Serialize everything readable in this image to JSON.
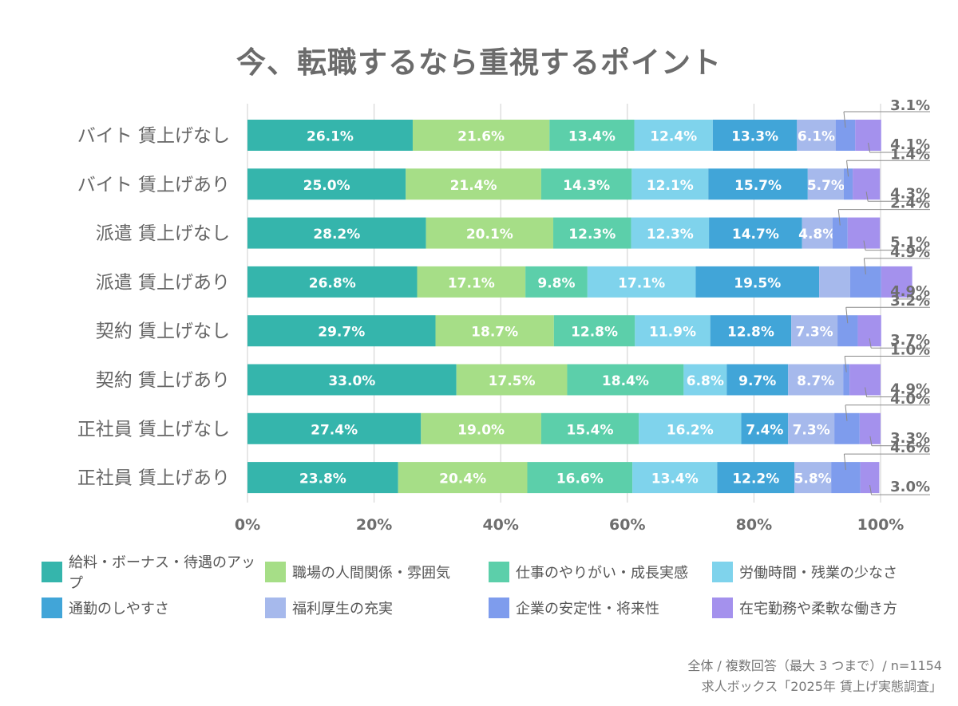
{
  "chart_data": {
    "type": "bar",
    "orientation": "horizontal",
    "stacked": true,
    "title": "今、転職するなら重視するポイント",
    "categories": [
      "バイト 賃上げなし",
      "バイト 賃上げあり",
      "派遣 賃上げなし",
      "派遣 賃上げあり",
      "契約 賃上げなし",
      "契約 賃上げあり",
      "正社員 賃上げなし",
      "正社員 賃上げあり"
    ],
    "series": [
      {
        "name": "給料・ボーナス・待遇のアップ",
        "color": "#35b5ac",
        "values": [
          26.1,
          25.0,
          28.2,
          26.8,
          29.7,
          33.0,
          27.4,
          23.8
        ]
      },
      {
        "name": "職場の人間関係・雰囲気",
        "color": "#a6de87",
        "values": [
          21.6,
          21.4,
          20.1,
          17.1,
          18.7,
          17.5,
          19.0,
          20.4
        ]
      },
      {
        "name": "仕事のやりがい・成長実感",
        "color": "#5ccfaa",
        "values": [
          13.4,
          14.3,
          12.3,
          9.8,
          12.8,
          18.4,
          15.4,
          16.6
        ]
      },
      {
        "name": "労働時間・残業の少なさ",
        "color": "#7fd3ec",
        "values": [
          12.4,
          12.1,
          12.3,
          17.1,
          11.9,
          6.8,
          16.2,
          13.4
        ]
      },
      {
        "name": "通勤のしやすさ",
        "color": "#41a5d8",
        "values": [
          13.3,
          15.7,
          14.7,
          19.5,
          12.8,
          9.7,
          7.4,
          12.2
        ]
      },
      {
        "name": "福利厚生の充実",
        "color": "#a6b9ec",
        "values": [
          6.1,
          5.7,
          4.8,
          4.9,
          7.3,
          8.7,
          7.3,
          5.8
        ]
      },
      {
        "name": "企業の安定性・将来性",
        "color": "#7e9ced",
        "values": [
          3.1,
          1.4,
          2.4,
          4.9,
          3.2,
          1.0,
          4.0,
          4.6
        ]
      },
      {
        "name": "在宅勤務や柔軟な働き方",
        "color": "#a491ed",
        "values": [
          4.1,
          4.3,
          5.1,
          4.9,
          3.7,
          4.9,
          3.3,
          3.0
        ]
      }
    ],
    "labels": [
      [
        "26.1%",
        "21.6%",
        "13.4%",
        "12.4%",
        "13.3%",
        "6.1%",
        "",
        ""
      ],
      [
        "25.0%",
        "21.4%",
        "14.3%",
        "12.1%",
        "15.7%",
        "5.7%",
        "",
        ""
      ],
      [
        "28.2%",
        "20.1%",
        "12.3%",
        "12.3%",
        "14.7%",
        "4.8%",
        "",
        ""
      ],
      [
        "26.8%",
        "17.1%",
        "9.8%",
        "17.1%",
        "19.5%",
        "",
        "",
        ""
      ],
      [
        "29.7%",
        "18.7%",
        "12.8%",
        "11.9%",
        "12.8%",
        "7.3%",
        "",
        ""
      ],
      [
        "33.0%",
        "17.5%",
        "18.4%",
        "6.8%",
        "9.7%",
        "8.7%",
        "",
        ""
      ],
      [
        "27.4%",
        "19.0%",
        "15.4%",
        "16.2%",
        "7.4%",
        "7.3%",
        "",
        ""
      ],
      [
        "23.8%",
        "20.4%",
        "16.6%",
        "13.4%",
        "12.2%",
        "5.8%",
        "",
        ""
      ]
    ],
    "callouts": [
      [
        "3.1%",
        "4.1%"
      ],
      [
        "1.4%",
        "4.3%"
      ],
      [
        "2.4%",
        "5.1%"
      ],
      [
        "4.9%",
        "4.9%"
      ],
      [
        "3.2%",
        "3.7%"
      ],
      [
        "1.0%",
        "4.9%"
      ],
      [
        "4.0%",
        "3.3%"
      ],
      [
        "4.6%",
        "3.0%"
      ]
    ],
    "xlim": [
      0,
      100
    ],
    "xticks": [
      0,
      20,
      40,
      60,
      80,
      100
    ],
    "xtick_labels": [
      "0%",
      "20%",
      "40%",
      "60%",
      "80%",
      "100%"
    ],
    "grid": true,
    "legend_position": "bottom"
  },
  "footer": {
    "line1": "全体 / 複数回答（最大 3 つまで）/ n=1154",
    "line2": "求人ボックス「2025年 賃上げ実態調査」"
  }
}
